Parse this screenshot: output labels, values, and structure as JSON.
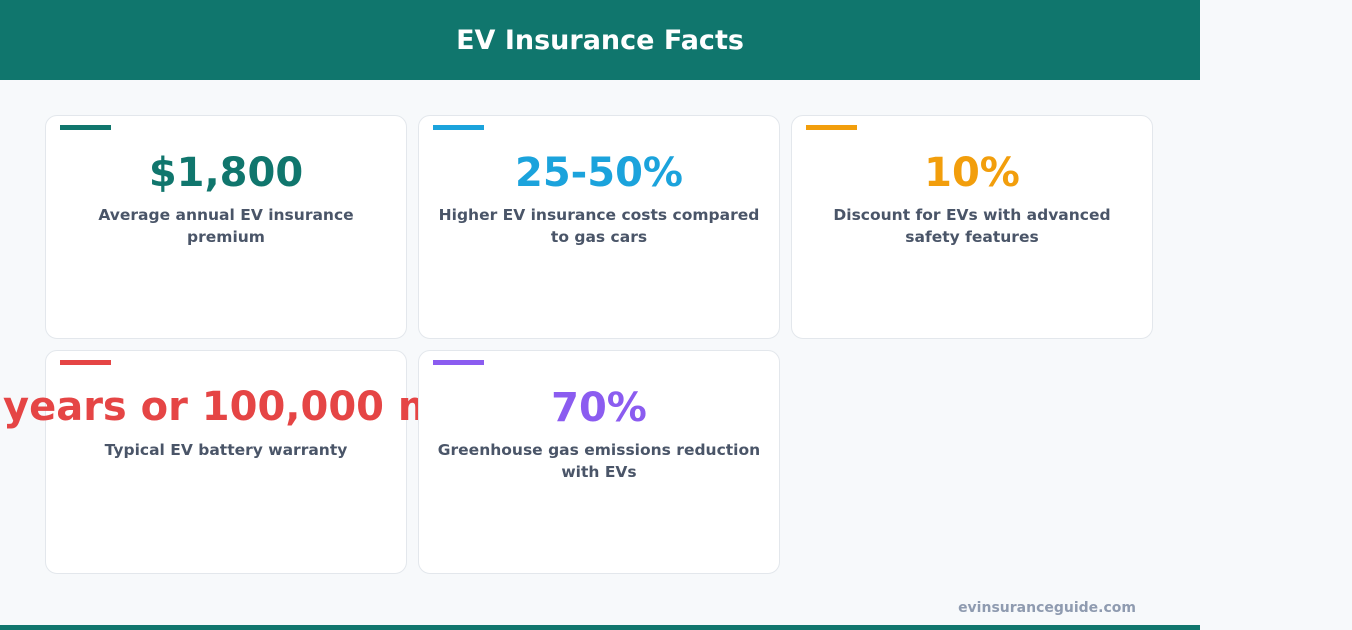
{
  "header": {
    "title": "EV Insurance Facts"
  },
  "cards": [
    {
      "value": "$1,800",
      "label": "Average annual EV insurance premium",
      "color": "#10766d"
    },
    {
      "value": "25-50%",
      "label": "Higher EV insurance costs compared to gas cars",
      "color": "#1ba3dc"
    },
    {
      "value": "10%",
      "label": "Discount for EVs with advanced safety features",
      "color": "#f29e0c"
    },
    {
      "value": "years or 100,000 m",
      "label": "Typical EV battery warranty",
      "color": "#e54545"
    },
    {
      "value": "70%",
      "label": "Greenhouse gas emissions reduction with EVs",
      "color": "#8b5cf0"
    }
  ],
  "footer": {
    "site": "evinsuranceguide.com"
  }
}
